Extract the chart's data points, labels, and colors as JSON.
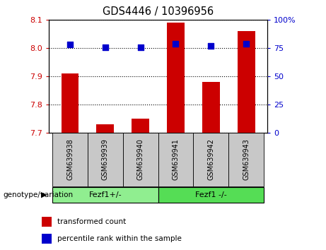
{
  "title": "GDS4446 / 10396956",
  "samples": [
    "GSM639938",
    "GSM639939",
    "GSM639940",
    "GSM639941",
    "GSM639942",
    "GSM639943"
  ],
  "transformed_count": [
    7.91,
    7.73,
    7.75,
    8.09,
    7.88,
    8.06
  ],
  "percentile_rank": [
    78,
    76,
    76,
    79,
    77,
    79
  ],
  "ylim_left": [
    7.7,
    8.1
  ],
  "ylim_right": [
    0,
    100
  ],
  "yticks_left": [
    7.7,
    7.8,
    7.9,
    8.0,
    8.1
  ],
  "yticks_right": [
    0,
    25,
    50,
    75,
    100
  ],
  "bar_color": "#CC0000",
  "dot_color": "#0000CC",
  "bar_bottom": 7.7,
  "bar_width": 0.5,
  "dot_size": 35,
  "grid_color": "black",
  "left_tick_color": "#CC0000",
  "right_tick_color": "#0000CC",
  "legend_items": [
    "transformed count",
    "percentile rank within the sample"
  ],
  "legend_colors": [
    "#CC0000",
    "#0000CC"
  ],
  "genotype_label": "genotype/variation",
  "sample_box_color": "#C8C8C8",
  "group_boundaries": [
    [
      -0.5,
      2.5,
      "Fezf1+/-",
      "#90EE90"
    ],
    [
      2.5,
      5.5,
      "Fezf1 -/-",
      "#55DD55"
    ]
  ],
  "fig_width": 4.61,
  "fig_height": 3.54,
  "dpi": 100
}
